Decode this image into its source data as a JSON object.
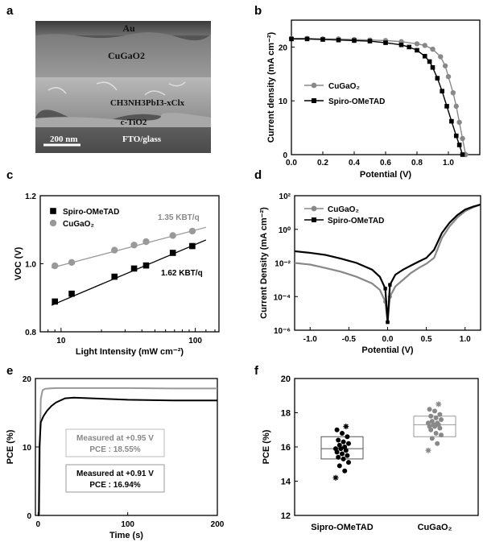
{
  "panel_labels": {
    "a": "a",
    "b": "b",
    "c": "c",
    "d": "d",
    "e": "e",
    "f": "f"
  },
  "sem_image": {
    "layers": [
      "Au",
      "CuGaO2",
      "CH3NH3PbI3-xClx",
      "c-TiO2",
      "FTO/glass"
    ],
    "scale_bar": "200 nm"
  },
  "chart_data": [
    {
      "panel": "b",
      "type": "line",
      "xlabel": "Potential (V)",
      "ylabel": "Current density (mA cm⁻²)",
      "xlim": [
        0,
        1.2
      ],
      "ylim": [
        0,
        25
      ],
      "xticks": [
        "0.0",
        "0.2",
        "0.4",
        "0.6",
        "0.8",
        "1.0"
      ],
      "yticks": [
        "0",
        "10",
        "20"
      ],
      "legend": "center-right",
      "series": [
        {
          "name": "CuGaO₂",
          "marker": "circle",
          "color": "#888888",
          "x": [
            0,
            0.1,
            0.2,
            0.3,
            0.4,
            0.5,
            0.6,
            0.7,
            0.8,
            0.85,
            0.9,
            0.95,
            0.98,
            1.0,
            1.03,
            1.05,
            1.07,
            1.09,
            1.11
          ],
          "y": [
            21.6,
            21.6,
            21.5,
            21.5,
            21.4,
            21.3,
            21.2,
            21.0,
            20.6,
            20.3,
            19.6,
            18.2,
            16.5,
            14.5,
            11.5,
            9.0,
            6.0,
            3.0,
            0
          ]
        },
        {
          "name": "Spiro-OMeTAD",
          "marker": "square",
          "color": "#000000",
          "x": [
            0,
            0.1,
            0.2,
            0.3,
            0.4,
            0.5,
            0.6,
            0.7,
            0.75,
            0.8,
            0.85,
            0.88,
            0.9,
            0.93,
            0.96,
            0.99,
            1.02,
            1.05,
            1.07,
            1.09
          ],
          "y": [
            21.5,
            21.5,
            21.4,
            21.3,
            21.2,
            21.1,
            20.8,
            20.4,
            20.0,
            19.4,
            18.3,
            17.3,
            16.2,
            14.2,
            11.8,
            9.0,
            6.2,
            3.5,
            1.8,
            0
          ]
        }
      ]
    },
    {
      "panel": "c",
      "type": "scatter",
      "xlabel": "Light Intensity (mW cm⁻²)",
      "ylabel": "VOC (V)",
      "xscale": "log",
      "xlim": [
        7,
        150
      ],
      "ylim": [
        0.8,
        1.2
      ],
      "xticks": [
        "10",
        "100"
      ],
      "yticks": [
        "0.8",
        "1.0",
        "1.2"
      ],
      "legend": "top-left",
      "annotations": [
        "1.35 KBT/q",
        "1.62 KBT/q"
      ],
      "series": [
        {
          "name": "Spiro-OMeTAD",
          "marker": "square",
          "color": "#000000",
          "x": [
            9,
            12,
            25,
            35,
            43,
            68,
            95
          ],
          "y": [
            0.889,
            0.912,
            0.962,
            0.986,
            0.995,
            1.032,
            1.052
          ],
          "fit": {
            "x": [
              8.5,
              120
            ],
            "y": [
              0.878,
              1.07
            ]
          }
        },
        {
          "name": "CuGaO₂",
          "marker": "circle",
          "color": "#999999",
          "x": [
            9,
            12,
            25,
            35,
            43,
            68,
            95
          ],
          "y": [
            0.994,
            1.004,
            1.04,
            1.055,
            1.065,
            1.083,
            1.096
          ],
          "fit": {
            "x": [
              8.5,
              120
            ],
            "y": [
              0.988,
              1.107
            ]
          }
        }
      ]
    },
    {
      "panel": "d",
      "type": "line",
      "xlabel": "Potential (V)",
      "ylabel": "Current Density (mA cm⁻²)",
      "yscale": "log",
      "xlim": [
        -1.2,
        1.2
      ],
      "ylim": [
        1e-06,
        100
      ],
      "xticks": [
        "-1.0",
        "-0.5",
        "0.0",
        "0.5",
        "1.0"
      ],
      "yticks": [
        "10²",
        "10⁰",
        "10⁻²",
        "10⁻⁴",
        "10⁻⁶"
      ],
      "legend": "top-left",
      "series": [
        {
          "name": "CuGaO₂",
          "marker": "circle",
          "color": "#888888",
          "x": [
            -1.2,
            -1.0,
            -0.8,
            -0.6,
            -0.4,
            -0.2,
            -0.1,
            -0.03,
            0.0,
            0.03,
            0.1,
            0.2,
            0.3,
            0.4,
            0.5,
            0.6,
            0.7,
            0.8,
            0.9,
            1.0,
            1.1,
            1.2
          ],
          "y": [
            0.01,
            0.008,
            0.005,
            0.003,
            0.0015,
            0.0006,
            0.00025,
            5e-05,
            3e-06,
            0.0001,
            0.0004,
            0.001,
            0.0025,
            0.005,
            0.009,
            0.02,
            0.3,
            1.5,
            5,
            12,
            20,
            30
          ]
        },
        {
          "name": "Spiro-OMeTAD",
          "marker": "square",
          "color": "#000000",
          "x": [
            -1.2,
            -1.0,
            -0.8,
            -0.6,
            -0.4,
            -0.2,
            -0.1,
            -0.03,
            0.0,
            0.03,
            0.1,
            0.2,
            0.3,
            0.4,
            0.5,
            0.6,
            0.7,
            0.8,
            0.9,
            1.0,
            1.1,
            1.2
          ],
          "y": [
            0.05,
            0.04,
            0.03,
            0.018,
            0.01,
            0.004,
            0.0015,
            0.0003,
            3e-06,
            0.0005,
            0.002,
            0.004,
            0.007,
            0.012,
            0.02,
            0.06,
            0.6,
            2.5,
            7,
            15,
            22,
            30
          ]
        }
      ]
    },
    {
      "panel": "e",
      "type": "line",
      "xlabel": "Time (s)",
      "ylabel": "PCE (%)",
      "xlim": [
        -3,
        200
      ],
      "ylim": [
        0,
        20
      ],
      "xticks": [
        "0",
        "100",
        "200"
      ],
      "yticks": [
        "0",
        "10",
        "20"
      ],
      "annotations": [
        {
          "lines": [
            "Measured at +0.95 V",
            "PCE : 18.55%"
          ],
          "color": "#888888"
        },
        {
          "lines": [
            "Measured at +0.91 V",
            "PCE : 16.94%"
          ],
          "color": "#000000"
        }
      ],
      "series": [
        {
          "name": "Measured at +0.95 V",
          "color": "#999999",
          "x": [
            0,
            1.2,
            2,
            3,
            5,
            8,
            12,
            20,
            50,
            100,
            150,
            200
          ],
          "y": [
            0,
            0,
            10,
            17,
            18.3,
            18.5,
            18.55,
            18.6,
            18.6,
            18.6,
            18.55,
            18.55
          ]
        },
        {
          "name": "Measured at +0.91 V",
          "color": "#000000",
          "x": [
            0,
            0.8,
            1.5,
            3,
            6,
            10,
            15,
            20,
            30,
            40,
            60,
            80,
            100,
            150,
            200
          ],
          "y": [
            0,
            0,
            10,
            13.6,
            14.5,
            15.3,
            16.0,
            16.5,
            17.1,
            17.2,
            17.1,
            17.0,
            16.9,
            16.8,
            16.8
          ]
        }
      ]
    },
    {
      "panel": "f",
      "type": "box",
      "xlabel": "",
      "ylabel": "PCE (%)",
      "ylim": [
        12,
        20
      ],
      "yticks": [
        "12",
        "14",
        "16",
        "18",
        "20"
      ],
      "categories": [
        "Sipro-OMeTAD",
        "CuGaO₂"
      ],
      "series": [
        {
          "name": "Sipro-OMeTAD",
          "color": "#000000",
          "box": {
            "q1": 15.3,
            "median": 15.9,
            "q3": 16.6,
            "min": 14.2,
            "max": 17.2
          },
          "points": [
            14.2,
            14.6,
            14.9,
            15.1,
            15.3,
            15.4,
            15.5,
            15.6,
            15.7,
            15.8,
            15.9,
            15.9,
            16.0,
            16.1,
            16.2,
            16.3,
            16.4,
            16.6,
            16.8,
            17.0,
            17.2
          ]
        },
        {
          "name": "CuGaO₂",
          "color": "#888888",
          "box": {
            "q1": 16.6,
            "median": 17.3,
            "q3": 17.8,
            "min": 15.8,
            "max": 18.5
          },
          "points": [
            15.8,
            16.2,
            16.5,
            16.7,
            16.8,
            17.0,
            17.1,
            17.2,
            17.2,
            17.3,
            17.3,
            17.4,
            17.4,
            17.5,
            17.6,
            17.7,
            17.8,
            17.9,
            18.1,
            18.2,
            18.5
          ]
        }
      ]
    }
  ]
}
